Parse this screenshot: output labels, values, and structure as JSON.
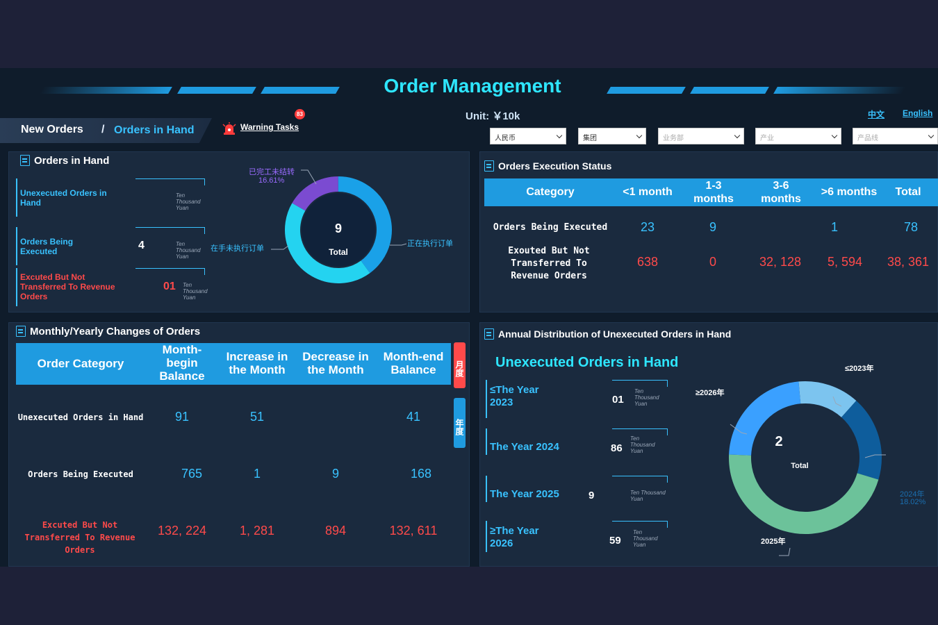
{
  "header": {
    "title": "Order Management",
    "unit_label": "Unit: ￥10k",
    "lang_cn": "中文",
    "lang_en": "English"
  },
  "breadcrumb": {
    "first": "New Orders",
    "separator": "/",
    "current": "Orders in Hand"
  },
  "warning": {
    "label": "Warning Tasks",
    "count": "83"
  },
  "filters": [
    {
      "value": "人民币",
      "placeholder": false
    },
    {
      "value": "集团",
      "placeholder": false
    },
    {
      "value": "业务部",
      "placeholder": true
    },
    {
      "value": "产业",
      "placeholder": true
    },
    {
      "value": "产品线",
      "placeholder": true
    }
  ],
  "orders_in_hand": {
    "title": "Orders in Hand",
    "kpis": [
      {
        "label": "Unexecuted Orders in Hand",
        "value": "",
        "unit": "Ten Thousand Yuan",
        "color": "#39c2ff"
      },
      {
        "label": "Orders Being Executed",
        "value": "4",
        "unit": "Ten Thousand Yuan",
        "color": "#39c2ff"
      },
      {
        "label": "Excuted But Not Transferred To Revenue Orders",
        "value": "01",
        "unit": "Ten Thousand Yuan",
        "color": "#ff4a4a"
      }
    ],
    "donut": {
      "center_label": "Total",
      "center_value": "9",
      "label_purple": "已完工未结转",
      "pct_purple": "16.61%",
      "label_left": "在手未执行订单",
      "label_right": "正在执行订单"
    },
    "donut_segments": [
      {
        "share": 0.1661,
        "color": "#7b4bd1"
      },
      {
        "share": 0.4,
        "color": "#1aa1e8"
      },
      {
        "share": 0.4339,
        "color": "#24d3f0"
      }
    ]
  },
  "execution_status": {
    "title": "Orders Execution Status",
    "columns": [
      "Category",
      "<1 month",
      "1-3 months",
      "3-6 months",
      ">6 months",
      "Total"
    ],
    "rows": [
      {
        "label": "Orders Being Executed",
        "values": [
          "23",
          "9",
          "",
          "1",
          "78"
        ],
        "red": false
      },
      {
        "label": "Exouted But Not Transferred To Revenue Orders",
        "values": [
          "638",
          "0",
          "32, 128",
          "5, 594",
          "38, 361"
        ],
        "red": true
      }
    ]
  },
  "monthly_changes": {
    "title": "Monthly/Yearly Changes of Orders",
    "columns": [
      "Order Category",
      "Month-begin Balance",
      "Increase in the Month",
      "Decrease in the Month",
      "Month-end Balance"
    ],
    "rows": [
      {
        "label": "Unexecuted Orders in Hand",
        "values": [
          "91",
          "51",
          "",
          "41"
        ],
        "red": false
      },
      {
        "label": "Orders Being Executed",
        "values": [
          "765",
          "1",
          "9",
          "168"
        ],
        "red": false
      },
      {
        "label": "Excuted But Not Transferred To Revenue Orders",
        "values": [
          "132, 224",
          "1, 281",
          "894",
          "132, 611"
        ],
        "red": true
      }
    ],
    "tab_month": "月度",
    "tab_year": "年度"
  },
  "annual_distribution": {
    "title": "Annual Distribution of Unexecuted Orders in Hand",
    "subtitle": "Unexecuted Orders in Hand",
    "kpis": [
      {
        "label": "≤The Year 2023",
        "value": "01",
        "unit": "Ten Thousand Yuan"
      },
      {
        "label": "The Year 2024",
        "value": "86",
        "unit": "Ten Thousand Yuan"
      },
      {
        "label": "The Year 2025",
        "value": "9",
        "unit": "Ten Thousand Yuan"
      },
      {
        "label": "≥The Year 2026",
        "value": "59",
        "unit": "Ten Thousand Yuan"
      }
    ],
    "donut": {
      "center_label": "Total",
      "center_value": "2",
      "label_2023": "≤2023年",
      "label_2026": "≥2026年",
      "label_2024": "2024年",
      "pct_2024": "18.02%",
      "label_2025": "2025年"
    },
    "donut_segments": [
      {
        "share": 0.13,
        "color": "#7cc4ef"
      },
      {
        "share": 0.1802,
        "color": "#0e5d9c"
      },
      {
        "share": 0.46,
        "color": "#6cc29a"
      },
      {
        "share": 0.2298,
        "color": "#3aa0ff"
      }
    ]
  }
}
